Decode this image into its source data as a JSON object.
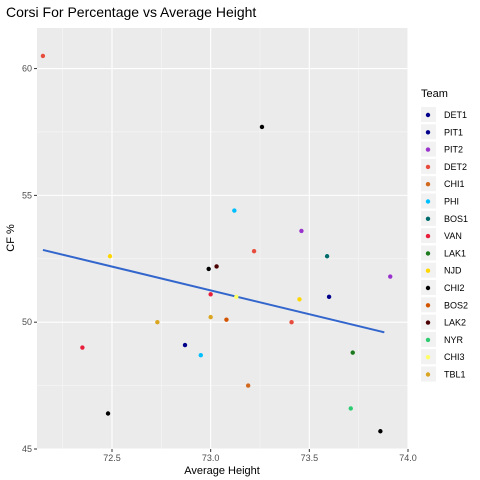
{
  "chart_data": {
    "type": "scatter",
    "title": "Corsi For Percentage vs Average Height",
    "xlabel": "Average Height",
    "ylabel": "CF %",
    "xlim": [
      72.12,
      74.0
    ],
    "ylim": [
      45.0,
      61.6
    ],
    "xticks": [
      72.5,
      73.0,
      73.5,
      74.0
    ],
    "xtick_labels": [
      "72.5",
      "73.0",
      "73.5",
      "74.0"
    ],
    "yticks": [
      45,
      50,
      55,
      60
    ],
    "ytick_labels": [
      "45",
      "50",
      "55",
      "60"
    ],
    "grid": true,
    "background": "#ebebeb",
    "legend": {
      "title": "Team",
      "placement": "right",
      "entries": [
        {
          "name": "DET1",
          "color": "#00008b"
        },
        {
          "name": "PIT1",
          "color": "#00008b"
        },
        {
          "name": "PIT2",
          "color": "#9932cc"
        },
        {
          "name": "DET2",
          "color": "#e74c3c"
        },
        {
          "name": "CHI1",
          "color": "#d2691e"
        },
        {
          "name": "PHI",
          "color": "#00bfff"
        },
        {
          "name": "BOS1",
          "color": "#006b6b"
        },
        {
          "name": "VAN",
          "color": "#e81e3a"
        },
        {
          "name": "LAK1",
          "color": "#1e7a1e"
        },
        {
          "name": "NJD",
          "color": "#ffd700"
        },
        {
          "name": "CHI2",
          "color": "#000000"
        },
        {
          "name": "BOS2",
          "color": "#d35400"
        },
        {
          "name": "LAK2",
          "color": "#4a0000"
        },
        {
          "name": "NYR",
          "color": "#2ecc71"
        },
        {
          "name": "CHI3",
          "color": "#ffff66"
        },
        {
          "name": "TBL1",
          "color": "#daa520"
        }
      ]
    },
    "points": [
      {
        "x": 72.15,
        "y": 60.5,
        "color": "#e74c3c"
      },
      {
        "x": 72.35,
        "y": 49.0,
        "color": "#e81e3a"
      },
      {
        "x": 72.48,
        "y": 46.4,
        "color": "#000000"
      },
      {
        "x": 72.49,
        "y": 52.6,
        "color": "#ffd700"
      },
      {
        "x": 72.73,
        "y": 50.0,
        "color": "#daa520"
      },
      {
        "x": 72.87,
        "y": 49.1,
        "color": "#00008b"
      },
      {
        "x": 72.95,
        "y": 48.7,
        "color": "#00bfff"
      },
      {
        "x": 72.99,
        "y": 52.1,
        "color": "#000000"
      },
      {
        "x": 73.0,
        "y": 51.1,
        "color": "#e81e3a"
      },
      {
        "x": 73.0,
        "y": 50.2,
        "color": "#daa520"
      },
      {
        "x": 73.03,
        "y": 52.2,
        "color": "#4a0000"
      },
      {
        "x": 73.08,
        "y": 50.1,
        "color": "#d35400"
      },
      {
        "x": 73.12,
        "y": 54.4,
        "color": "#00bfff"
      },
      {
        "x": 73.13,
        "y": 51.0,
        "color": "#ffff66"
      },
      {
        "x": 73.19,
        "y": 47.5,
        "color": "#d2691e"
      },
      {
        "x": 73.22,
        "y": 52.8,
        "color": "#e74c3c"
      },
      {
        "x": 73.26,
        "y": 57.7,
        "color": "#000000"
      },
      {
        "x": 73.41,
        "y": 50.0,
        "color": "#e74c3c"
      },
      {
        "x": 73.45,
        "y": 50.9,
        "color": "#ffd700"
      },
      {
        "x": 73.46,
        "y": 53.6,
        "color": "#9932cc"
      },
      {
        "x": 73.59,
        "y": 52.6,
        "color": "#006b6b"
      },
      {
        "x": 73.6,
        "y": 51.0,
        "color": "#00008b"
      },
      {
        "x": 73.71,
        "y": 46.6,
        "color": "#2ecc71"
      },
      {
        "x": 73.72,
        "y": 48.8,
        "color": "#1e7a1e"
      },
      {
        "x": 73.86,
        "y": 45.7,
        "color": "#000000"
      },
      {
        "x": 73.91,
        "y": 51.8,
        "color": "#9932cc"
      }
    ],
    "trend_line": {
      "color": "#3366cc",
      "points": [
        {
          "x": 72.15,
          "y": 52.85
        },
        {
          "x": 73.88,
          "y": 49.6
        }
      ]
    }
  }
}
